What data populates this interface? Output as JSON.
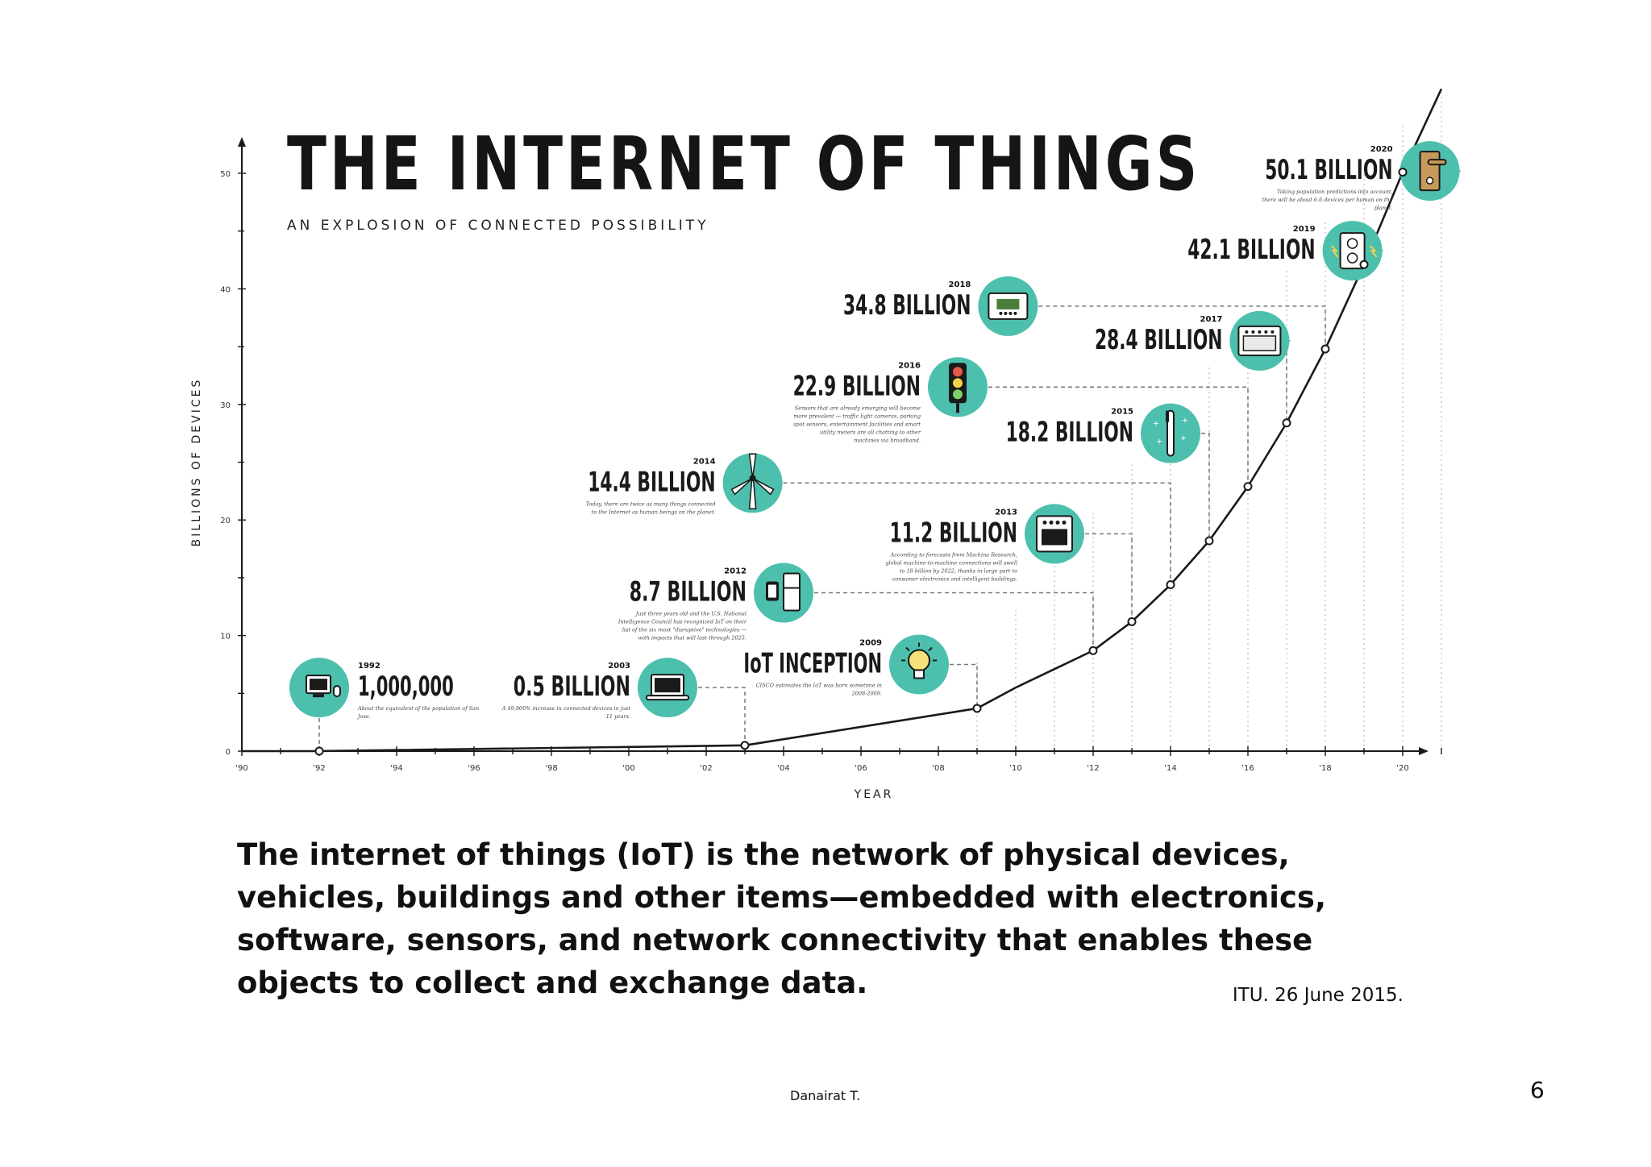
{
  "chart_data": {
    "type": "line",
    "title": "THE INTERNET OF THINGS",
    "subtitle": "AN EXPLOSION OF CONNECTED POSSIBILITY",
    "xlabel": "YEAR",
    "ylabel": "BILLIONS OF DEVICES",
    "xlim": [
      1990,
      2021
    ],
    "ylim": [
      0,
      50
    ],
    "x_ticks": [
      1990,
      1992,
      1994,
      1996,
      1998,
      2000,
      2002,
      2004,
      2006,
      2008,
      2010,
      2012,
      2014,
      2016,
      2018,
      2020
    ],
    "x_tick_labels": [
      "'90",
      "'92",
      "'94",
      "'96",
      "'98",
      "'00",
      "'02",
      "'04",
      "'06",
      "'08",
      "'10",
      "'12",
      "'14",
      "'16",
      "'18",
      "'20"
    ],
    "y_ticks": [
      0,
      10,
      20,
      30,
      40,
      50
    ],
    "y_tick_labels": [
      "0",
      "10",
      "20",
      "30",
      "40",
      "50"
    ],
    "grid": false,
    "line_color": "#1a1a1a",
    "accent_color": "#4dbfad",
    "series": [
      {
        "x": [
          1990,
          1992,
          2003,
          2009,
          2010,
          2011,
          2012,
          2013,
          2014,
          2015,
          2016,
          2017,
          2018,
          2019,
          2020,
          2021
        ],
        "y": [
          0,
          0.001,
          0.5,
          3.7,
          5.5,
          7.1,
          8.7,
          11.2,
          14.4,
          18.2,
          22.9,
          28.4,
          34.8,
          42.1,
          50.1,
          57.3
        ]
      }
    ],
    "annotations": [
      {
        "year": "1992",
        "value": "1,000,000",
        "note": "About the equivalent of the population of San Jose.",
        "icon": "computer-icon",
        "x": 1992,
        "y": 0.001,
        "label_year": 1990.9,
        "label_y": 5.5
      },
      {
        "year": "2003",
        "value": "0.5 BILLION",
        "note": "A 49,900% increase in connected devices in just 11 years.",
        "icon": "laptop-icon",
        "x": 2003,
        "y": 0.5,
        "label_year": 2001.0,
        "label_y": 5.5
      },
      {
        "year": "2009",
        "value": "IoT INCEPTION",
        "note": "CISCO estimates the IoT was born sometime in 2008-2009.",
        "icon": "lightbulb-icon",
        "x": 2009,
        "y": 3.7,
        "label_year": 2007.5,
        "label_y": 7.5
      },
      {
        "year": "2012",
        "value": "8.7 BILLION",
        "note": "Just three years old and the U.S. National Intelligence Council has recognized IoT on their list of the six most \"disruptive\" technologies — with impacts that will last through 2025.",
        "icon": "watch-fridge-icon",
        "x": 2012,
        "y": 8.7,
        "label_year": 2004.0,
        "label_y": 13.7
      },
      {
        "year": "2013",
        "value": "11.2 BILLION",
        "note": "According to forecasts from Machina Research, global machine-to-machine connections will swell to 18 billion by 2022, thanks in large part to consumer electronics and intelligent buildings.",
        "icon": "oven-icon",
        "x": 2013,
        "y": 11.2,
        "label_year": 2011.0,
        "label_y": 18.8
      },
      {
        "year": "2014",
        "value": "14.4 BILLION",
        "note": "Today, there are twice as many things connected to the Internet as human beings on the planet.",
        "icon": "wind-turbine-icon",
        "x": 2014,
        "y": 14.4,
        "label_year": 2003.2,
        "label_y": 23.2
      },
      {
        "year": "2015",
        "value": "18.2 BILLION",
        "note": "",
        "icon": "toothbrush-icon",
        "x": 2015,
        "y": 18.2,
        "label_year": 2014.0,
        "label_y": 27.5
      },
      {
        "year": "2016",
        "value": "22.9 BILLION",
        "note": "Sensors that are already emerging will become more prevalent — traffic light cameras, parking spot sensors, entertainment facilities and smart utility meters are all chatting to other machines via broadband.",
        "icon": "traffic-light-icon",
        "x": 2016,
        "y": 22.9,
        "label_year": 2008.5,
        "label_y": 31.5
      },
      {
        "year": "2017",
        "value": "28.4 BILLION",
        "note": "",
        "icon": "oven-panel-icon",
        "x": 2017,
        "y": 28.4,
        "label_year": 2016.3,
        "label_y": 35.5
      },
      {
        "year": "2018",
        "value": "34.8 BILLION",
        "note": "",
        "icon": "thermostat-icon",
        "x": 2018,
        "y": 34.8,
        "label_year": 2009.8,
        "label_y": 38.5
      },
      {
        "year": "2019",
        "value": "42.1 BILLION",
        "note": "",
        "icon": "power-outlet-icon",
        "x": 2019,
        "y": 42.1,
        "label_year": 2018.7,
        "label_y": 43.3
      },
      {
        "year": "2020",
        "value": "50.1 BILLION",
        "note": "Taking population predictions into account, there will be about 6.6 devices per human on the planet.",
        "icon": "smart-lock-icon",
        "x": 2020,
        "y": 50.1,
        "label_year": 2020.7,
        "label_y": 50.2
      }
    ]
  },
  "caption": "The internet of things (IoT) is the network of physical devices, vehicles, buildings and other items—embedded with electronics, software, sensors, and network connectivity that enables these objects to collect and exchange data.",
  "source": "ITU. 26 June 2015.",
  "author": "Danairat T.",
  "page_number": "6"
}
